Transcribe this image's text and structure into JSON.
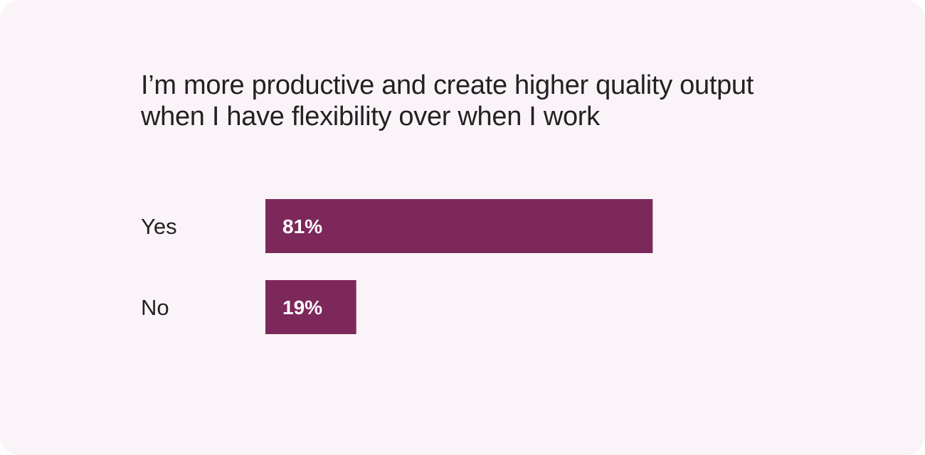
{
  "chart_data": {
    "type": "bar",
    "orientation": "horizontal",
    "title": "I’m more productive and create higher quality output when I have flexibility over when I work",
    "categories": [
      "Yes",
      "No"
    ],
    "values": [
      81,
      19
    ],
    "value_labels": [
      "81%",
      "19%"
    ],
    "unit": "%",
    "xlim": [
      0,
      100
    ],
    "grid": false,
    "legend": "none",
    "bar_color": "#7d285b"
  },
  "colors": {
    "background": "#faf4f9",
    "text": "#222222",
    "bar": "#7d285b",
    "bar_label": "#ffffff"
  }
}
